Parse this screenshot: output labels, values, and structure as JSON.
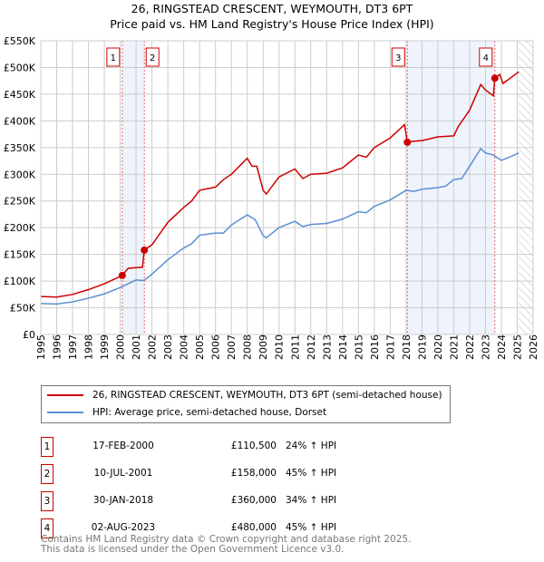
{
  "chart_data": {
    "type": "line",
    "title": "26, RINGSTEAD CRESCENT, WEYMOUTH, DT3 6PT",
    "subtitle": "Price paid vs. HM Land Registry's House Price Index (HPI)",
    "xlim": [
      1995,
      2026
    ],
    "ylim": [
      0,
      550000
    ],
    "x_ticks": [
      "1995",
      "1996",
      "1997",
      "1998",
      "1999",
      "2000",
      "2001",
      "2002",
      "2003",
      "2004",
      "2005",
      "2006",
      "2007",
      "2008",
      "2009",
      "2010",
      "2011",
      "2012",
      "2013",
      "2014",
      "2015",
      "2016",
      "2017",
      "2018",
      "2019",
      "2020",
      "2021",
      "2022",
      "2023",
      "2024",
      "2025",
      "2026"
    ],
    "y_ticks": [
      "£0",
      "£50K",
      "£100K",
      "£150K",
      "£200K",
      "£250K",
      "£300K",
      "£350K",
      "£400K",
      "£450K",
      "£500K",
      "£550K"
    ],
    "grid": true,
    "forecast_hatch_from": 2025.1,
    "series": [
      {
        "name": "26, RINGSTEAD CRESCENT, WEYMOUTH, DT3 6PT (semi-detached house)",
        "color": "#cc0000",
        "x": [
          1995,
          1996,
          1997,
          1998,
          1999,
          2000.13,
          2000.5,
          2001.4,
          2001.52,
          2002,
          2003,
          2004,
          2004.5,
          2005,
          2006,
          2006.5,
          2007,
          2008,
          2008.3,
          2008.6,
          2009,
          2009.2,
          2010,
          2011,
          2011.5,
          2012,
          2013,
          2014,
          2015,
          2015.5,
          2016,
          2017,
          2017.9,
          2018.08,
          2018.5,
          2019,
          2020,
          2021,
          2021.3,
          2022,
          2022.7,
          2023,
          2023.5,
          2023.59,
          2023.9,
          2024.1,
          2025.1
        ],
        "y": [
          71000,
          70000,
          75000,
          84000,
          95000,
          110500,
          124000,
          126000,
          158000,
          168000,
          210000,
          238000,
          250000,
          270000,
          276000,
          290000,
          300000,
          330000,
          315000,
          315000,
          270000,
          263000,
          295000,
          310000,
          292000,
          300000,
          302000,
          312000,
          336000,
          332000,
          350000,
          368000,
          393000,
          360000,
          362000,
          363000,
          370000,
          372000,
          390000,
          420000,
          468000,
          458000,
          447000,
          480000,
          487000,
          470000,
          492000
        ]
      },
      {
        "name": "HPI: Average price, semi-detached house, Dorset",
        "color": "#5b8fd4",
        "x": [
          1995,
          1996,
          1997,
          1998,
          1999,
          2000,
          2001,
          2001.5,
          2002,
          2003,
          2004,
          2004.5,
          2005,
          2006,
          2006.5,
          2007,
          2008,
          2008.5,
          2009,
          2009.2,
          2010,
          2011,
          2011.5,
          2012,
          2013,
          2014,
          2015,
          2015.5,
          2016,
          2017,
          2018,
          2018.5,
          2019,
          2020,
          2020.5,
          2021,
          2021.5,
          2022,
          2022.7,
          2023,
          2023.5,
          2024,
          2024.5,
          2025.1
        ],
        "y": [
          58000,
          57000,
          61000,
          68000,
          76000,
          88000,
          102000,
          101000,
          113000,
          140000,
          162000,
          170000,
          186000,
          190000,
          190000,
          205000,
          224000,
          215000,
          185000,
          181000,
          200000,
          212000,
          202000,
          206000,
          208000,
          216000,
          230000,
          228000,
          240000,
          252000,
          270000,
          268000,
          272000,
          275000,
          278000,
          290000,
          292000,
          315000,
          348000,
          340000,
          336000,
          326000,
          332000,
          340000
        ]
      }
    ],
    "shaded_ranges": [
      [
        2000.13,
        2001.52
      ],
      [
        2018.08,
        2023.59
      ]
    ],
    "sales": [
      {
        "id": "1",
        "x": 2000.13,
        "date": "17-FEB-2000",
        "price": "£110,500",
        "value": 110500,
        "hpi": "24% ↑ HPI"
      },
      {
        "id": "2",
        "x": 2001.52,
        "date": "10-JUL-2001",
        "price": "£158,000",
        "value": 158000,
        "hpi": "45% ↑ HPI"
      },
      {
        "id": "3",
        "x": 2018.08,
        "date": "30-JAN-2018",
        "price": "£360,000",
        "value": 360000,
        "hpi": "34% ↑ HPI"
      },
      {
        "id": "4",
        "x": 2023.59,
        "date": "02-AUG-2023",
        "price": "£480,000",
        "value": 480000,
        "hpi": "45% ↑ HPI"
      }
    ]
  },
  "footer": {
    "line1": "Contains HM Land Registry data © Crown copyright and database right 2025.",
    "line2": "This data is licensed under the Open Government Licence v3.0."
  }
}
